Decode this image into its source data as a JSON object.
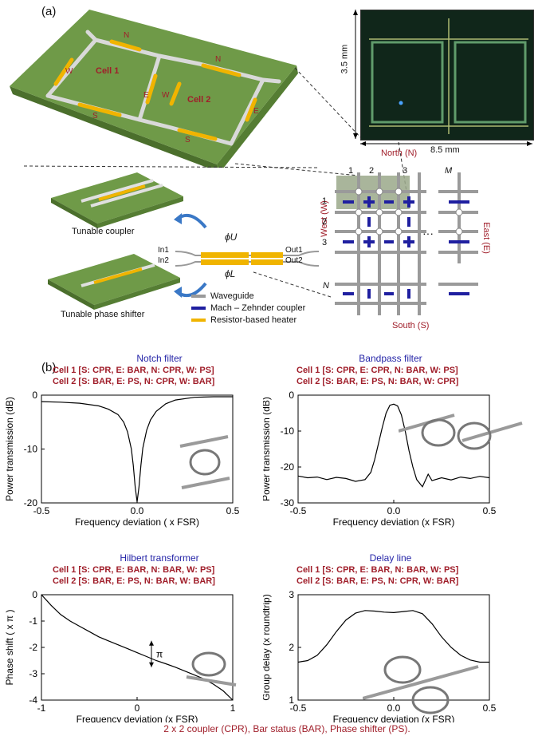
{
  "panel_labels": {
    "a": "(a)",
    "b": "(b)"
  },
  "device3d": {
    "cell1": "Cell 1",
    "cell2": "Cell 2",
    "edges": {
      "n": "N",
      "s": "S",
      "e": "E",
      "w": "W"
    }
  },
  "photo": {
    "height_label": "3.5 mm",
    "width_label": "8.5 mm"
  },
  "mini_devices": {
    "coupler": "Tunable coupler",
    "phase_shifter": "Tunable phase shifter"
  },
  "mzc": {
    "in1": "In1",
    "in2": "In2",
    "out1": "Out1",
    "out2": "Out2",
    "phi_u": "ϕU",
    "phi_l": "ϕL"
  },
  "legend": [
    {
      "label": "Waveguide",
      "color": "#9a9a9a"
    },
    {
      "label": "Mach – Zehnder coupler",
      "color": "#1f1fa0"
    },
    {
      "label": "Resistor-based heater",
      "color": "#f0b400"
    }
  ],
  "grid_diagram": {
    "north": "North (N)",
    "south": "South (S)",
    "west": "West (W)",
    "east": "East (E)",
    "cols": [
      "1",
      "2",
      "3",
      "M"
    ],
    "rows": [
      "1",
      "2",
      "3",
      "N"
    ],
    "ellipsis": "···"
  },
  "colors": {
    "config_red": "#a01e2a",
    "title_blue": "#2626a8",
    "pcb_green": "#6f9a48"
  },
  "footer": "2 x 2 coupler (CPR), Bar status (BAR), Phase shifter (PS).",
  "chart_data": [
    {
      "type": "line",
      "title": "Notch filter",
      "config": [
        "Cell 1 [S: CPR, E: BAR, N: CPR, W: PS]",
        "Cell 2 [S: BAR, E: PS, N: CPR, W: BAR]"
      ],
      "xlabel": "Frequency deviation ( x FSR)",
      "ylabel": "Power transmission (dB)",
      "xlim": [
        -0.5,
        0.5
      ],
      "ylim": [
        -20,
        0
      ],
      "xticks": [
        "-0.5",
        "0.0",
        "0.5"
      ],
      "yticks": [
        "0",
        "-10",
        "-20"
      ],
      "x": [
        -0.5,
        -0.4,
        -0.3,
        -0.2,
        -0.15,
        -0.1,
        -0.07,
        -0.05,
        -0.03,
        -0.02,
        -0.01,
        0.0,
        0.01,
        0.02,
        0.03,
        0.05,
        0.07,
        0.1,
        0.15,
        0.2,
        0.3,
        0.4,
        0.5
      ],
      "y": [
        -1.2,
        -1.3,
        -1.5,
        -2.0,
        -2.6,
        -3.6,
        -5.0,
        -6.8,
        -10.0,
        -13.0,
        -17.0,
        -19.8,
        -17.0,
        -13.0,
        -9.8,
        -6.5,
        -4.6,
        -3.0,
        -1.6,
        -0.9,
        -0.4,
        -0.3,
        -0.3
      ]
    },
    {
      "type": "line",
      "title": "Bandpass filter",
      "config": [
        "Cell 1 [S: CPR, E: CPR, N: BAR, W: PS]",
        "Cell 2 [S: BAR, E: PS, N: BAR, W: CPR]"
      ],
      "xlabel": "Frequency deviation (x FSR)",
      "ylabel": "Power transmission (dB)",
      "xlim": [
        -0.5,
        0.5
      ],
      "ylim": [
        -30,
        0
      ],
      "xticks": [
        "-0.5",
        "0.0",
        "0.5"
      ],
      "yticks": [
        "0",
        "-10",
        "-20",
        "-30"
      ],
      "x": [
        -0.5,
        -0.45,
        -0.4,
        -0.35,
        -0.3,
        -0.25,
        -0.2,
        -0.15,
        -0.12,
        -0.1,
        -0.08,
        -0.06,
        -0.04,
        -0.02,
        0.0,
        0.02,
        0.04,
        0.06,
        0.08,
        0.1,
        0.12,
        0.15,
        0.18,
        0.2,
        0.25,
        0.3,
        0.35,
        0.4,
        0.45,
        0.5
      ],
      "y": [
        -22.5,
        -23.0,
        -22.8,
        -23.5,
        -22.9,
        -23.2,
        -24.0,
        -23.5,
        -21.5,
        -18.0,
        -13.5,
        -9.0,
        -5.0,
        -2.8,
        -2.5,
        -3.0,
        -5.5,
        -10.0,
        -15.5,
        -20.0,
        -23.5,
        -25.5,
        -22.0,
        -23.8,
        -23.0,
        -23.6,
        -22.8,
        -23.2,
        -22.6,
        -23.0
      ]
    },
    {
      "type": "line",
      "title": "Hilbert transformer",
      "config": [
        "Cell 1 [S: CPR, E: BAR, N: BAR, W: PS]",
        "Cell 2 [S: BAR, E: PS, N: BAR, W: BAR]"
      ],
      "xlabel": "Frequency deviation (x FSR)",
      "ylabel": "Phase shift ( x π )",
      "xlim": [
        -1,
        1
      ],
      "ylim": [
        -4,
        0
      ],
      "xticks": [
        "-1",
        "0",
        "1"
      ],
      "yticks": [
        "0",
        "-1",
        "-2",
        "-3",
        "-4"
      ],
      "annotation": "π",
      "x": [
        -1.0,
        -0.9,
        -0.8,
        -0.7,
        -0.6,
        -0.5,
        -0.4,
        -0.3,
        -0.2,
        -0.1,
        0.0,
        0.1,
        0.2,
        0.3,
        0.4,
        0.5,
        0.6,
        0.7,
        0.8,
        0.9,
        1.0
      ],
      "y": [
        0.0,
        -0.4,
        -0.75,
        -1.0,
        -1.2,
        -1.4,
        -1.6,
        -1.75,
        -1.9,
        -2.05,
        -2.2,
        -2.35,
        -2.5,
        -2.62,
        -2.75,
        -2.9,
        -3.05,
        -3.2,
        -3.4,
        -3.65,
        -4.0
      ]
    },
    {
      "type": "line",
      "title": "Delay line",
      "config": [
        "Cell 1 [S: CPR, E: BAR, N: BAR, W: PS]",
        "Cell 2 [S: BAR, E: PS, N: CPR, W: BAR]"
      ],
      "xlabel": "Frequency deviation (x FSR)",
      "ylabel": "Group delay (x roundtrip)",
      "xlim": [
        -0.5,
        0.5
      ],
      "ylim": [
        1,
        3
      ],
      "xticks": [
        "-0.5",
        "0.0",
        "0.5"
      ],
      "yticks": [
        "1",
        "2",
        "3"
      ],
      "x": [
        -0.5,
        -0.45,
        -0.4,
        -0.35,
        -0.3,
        -0.25,
        -0.2,
        -0.15,
        -0.1,
        -0.05,
        0.0,
        0.05,
        0.1,
        0.15,
        0.2,
        0.25,
        0.3,
        0.35,
        0.4,
        0.45,
        0.5
      ],
      "y": [
        1.72,
        1.75,
        1.85,
        2.05,
        2.3,
        2.52,
        2.65,
        2.7,
        2.69,
        2.67,
        2.66,
        2.68,
        2.7,
        2.64,
        2.45,
        2.2,
        2.0,
        1.85,
        1.76,
        1.72,
        1.72
      ]
    }
  ]
}
